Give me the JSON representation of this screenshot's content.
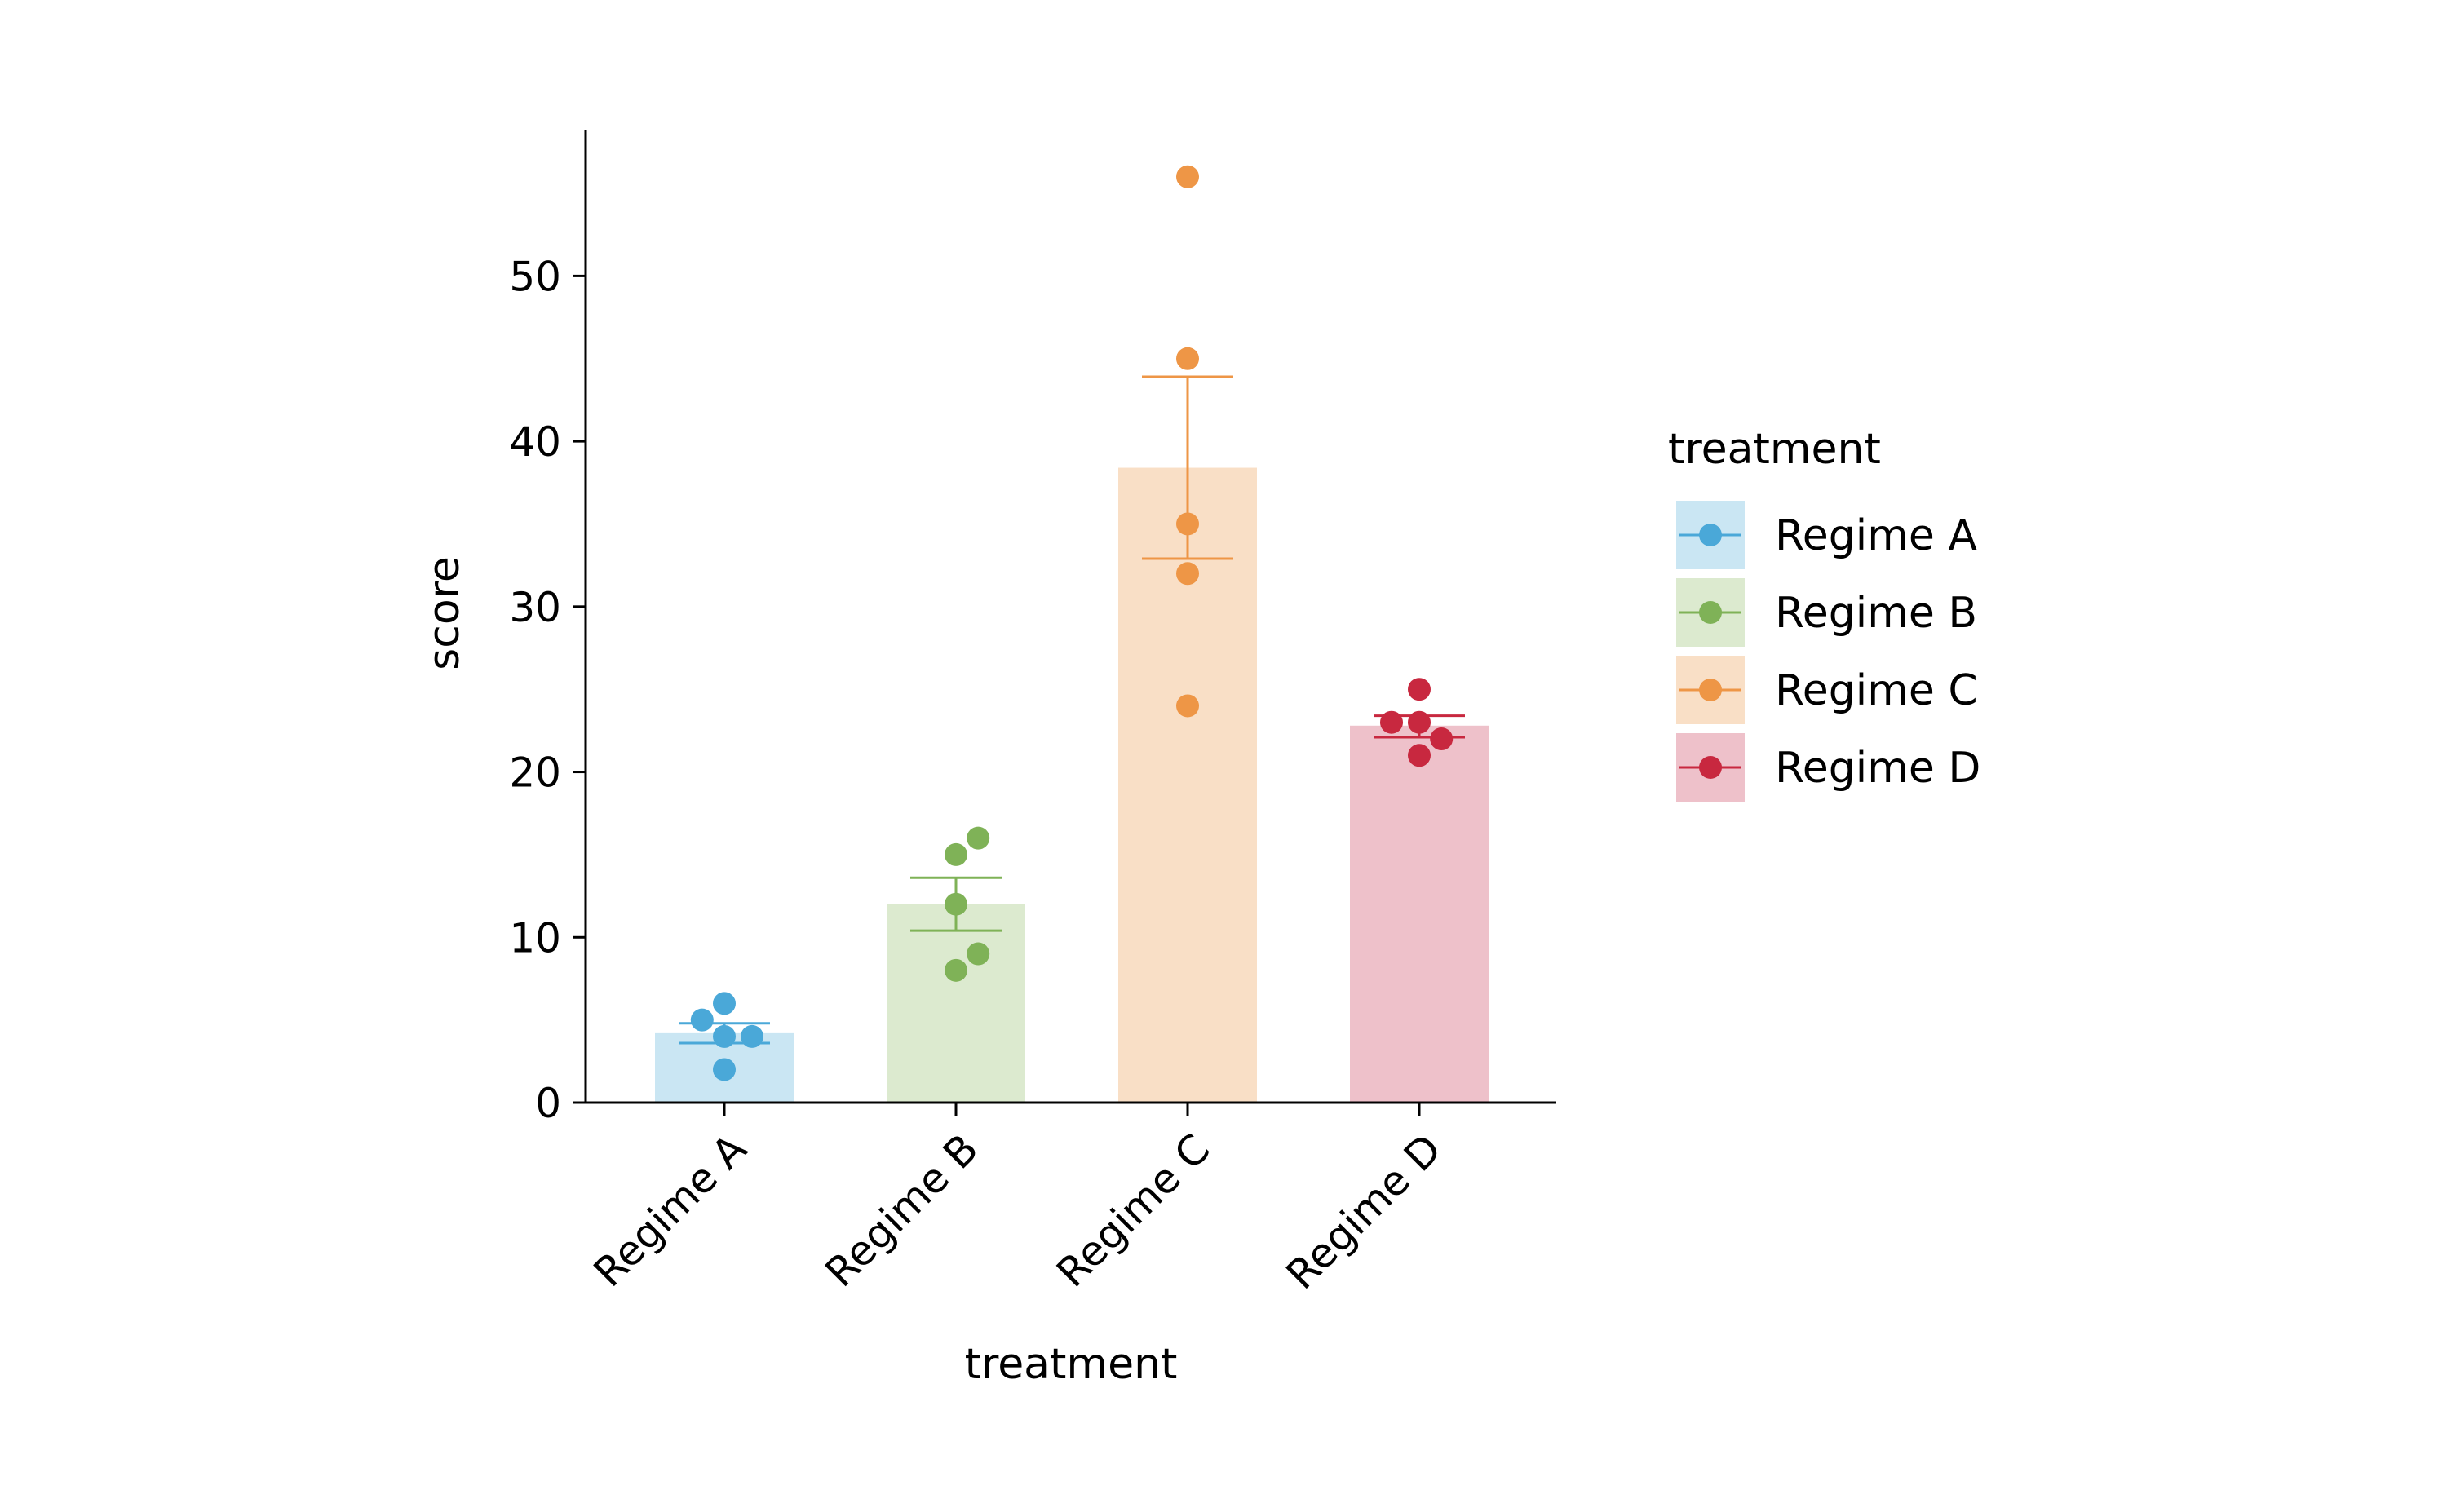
{
  "chart_data": {
    "type": "bar",
    "title": "",
    "xlabel": "treatment",
    "ylabel": "score",
    "ylim": [
      0,
      58.8
    ],
    "yticks": [
      0,
      10,
      20,
      30,
      40,
      50
    ],
    "grid": false,
    "legend": {
      "title": "treatment",
      "placement": "right"
    },
    "categories": [
      "Regime A",
      "Regime B",
      "Regime C",
      "Regime D"
    ],
    "colors": [
      "#4aa8d8",
      "#7fb257",
      "#ee9646",
      "#c8283f"
    ],
    "bar_fills": [
      "#cae6f3",
      "#dceacf",
      "#f9dfc6",
      "#eec1ca"
    ],
    "means": [
      4.2,
      12,
      38.4,
      22.8
    ],
    "error_low": [
      3.6,
      10.4,
      32.9,
      22.1
    ],
    "error_high": [
      4.8,
      13.6,
      43.9,
      23.4
    ],
    "points": [
      [
        {
          "dx": 0,
          "y": 6
        },
        {
          "dx": -0.16,
          "y": 5
        },
        {
          "dx": 0,
          "y": 4
        },
        {
          "dx": 0.2,
          "y": 4
        },
        {
          "dx": 0,
          "y": 2
        }
      ],
      [
        {
          "dx": 0.16,
          "y": 16
        },
        {
          "dx": 0,
          "y": 15
        },
        {
          "dx": 0,
          "y": 12
        },
        {
          "dx": 0.16,
          "y": 9
        },
        {
          "dx": 0,
          "y": 8
        }
      ],
      [
        {
          "dx": 0,
          "y": 56
        },
        {
          "dx": 0,
          "y": 45
        },
        {
          "dx": 0,
          "y": 35
        },
        {
          "dx": 0,
          "y": 32
        },
        {
          "dx": 0,
          "y": 24
        }
      ],
      [
        {
          "dx": 0,
          "y": 25
        },
        {
          "dx": -0.2,
          "y": 23
        },
        {
          "dx": 0,
          "y": 23
        },
        {
          "dx": 0.16,
          "y": 22
        },
        {
          "dx": 0,
          "y": 21
        }
      ]
    ]
  }
}
